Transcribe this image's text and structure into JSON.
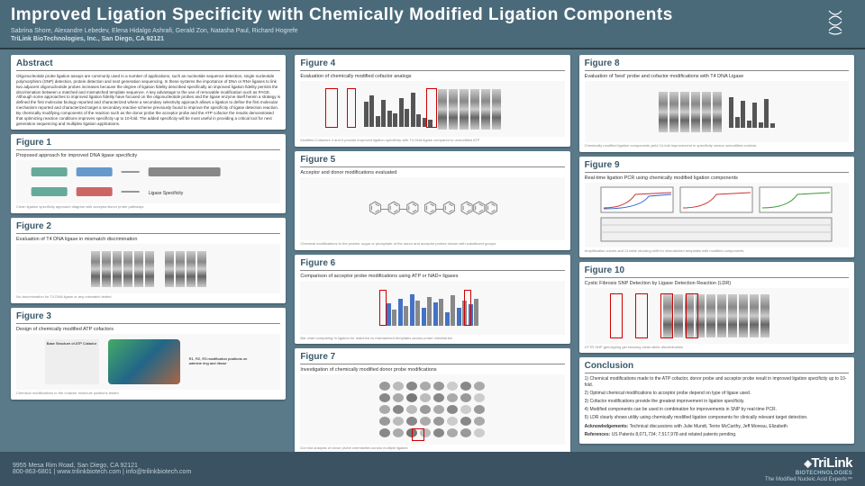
{
  "header": {
    "title": "Improved Ligation Specificity with Chemically Modified Ligation Components",
    "authors": "Sabrina Shore, Alexandre Lebedev, Elena Hidalgo Ashrafi, Gerald Zon, Natasha Paul, Richard Hogrefe",
    "affiliation": "TriLink BioTechnologies, Inc., San Diego, CA 92121"
  },
  "colors": {
    "bg": "#5a7a8a",
    "header_bg": "#4a6a7a",
    "panel_title": "#3a5a6a",
    "footer_bg": "#3a5262",
    "highlight": "#c00"
  },
  "col1": {
    "abstract_title": "Abstract",
    "abstract_body": "Oligonucleotide probe ligation assays are commonly used in a number of applications, such as nucleotide sequence detection, single nucleotide polymorphism (SNP) detection, protein detection and next generation sequencing. In these systems the importance of DNA or RNA ligases to link two adjacent oligonucleotide probes increases because the degree of ligation fidelity described specifically an improved ligation fidelity permits the discrimination between a matched and mismatched template sequence. A key advantage to the use of removable modification such as PAGE. Although some approaches to improved ligation fidelity have focused on the oligonucleotide probes and the ligase enzyme itself herein a strategy is defined the first molecular biology reported and characterized where a secondary selectivity approach allows a ligation to define the first molecular mechanism reported and characterized target a secondary reactive scheme previously found to improve the specificity of ligase detection reaction. By chemically modifying components of the reaction such as the donor probe the acceptor probe and the ATP cofactor the results demonstrated that optimizing reaction conditions improves specificity up to 10-fold. The added specificity will be most useful in providing a critical tool for next generation sequencing and multiplex ligation applications.",
    "fig1_title": "Figure 1",
    "fig1_sub": "Proposed approach for improved DNA ligase specificity",
    "fig2_title": "Figure 2",
    "fig2_sub": "Evaluation of T4 DNA ligase in mismatch discrimination",
    "fig3_title": "Figure 3",
    "fig3_sub": "Design of chemically modified ATP cofactors"
  },
  "col2": {
    "fig4_title": "Figure 4",
    "fig4_sub": "Evaluation of chemically modified cofactor analogs",
    "fig5_title": "Figure 5",
    "fig5_sub": "Acceptor and donor modifications evaluated",
    "fig6_title": "Figure 6",
    "fig6_sub": "Comparison of acceptor probe modifications using ATP or NAD+ ligases",
    "fig7_title": "Figure 7",
    "fig7_sub": "Investigation of chemically modified donor probe modifications"
  },
  "col3": {
    "fig8_title": "Figure 8",
    "fig8_sub": "Evaluation of 'best' probe and cofactor modifications with T4 DNA Ligase",
    "fig9_title": "Figure 9",
    "fig9_sub": "Real-time ligation PCR using chemically modified ligation components",
    "fig10_title": "Figure 10",
    "fig10_sub": "Cystic Fibrosis SNP Detection by Ligase Detection Reaction (LDR)",
    "concl_title": "Conclusion",
    "c1": "1) Chemical modifications made to the ATP cofactor, donor probe and acceptor probe result in improved ligation specificity up to 10-fold.",
    "c2": "2) Optimal chemical modifications to acceptor probe depend on type of ligase used.",
    "c3": "3) Cofactor modifications provide the greatest improvement in ligation specificity.",
    "c4": "4) Modified components can be used in combination for improvements in SNP by real-time PCR.",
    "c5": "5) LDR clearly shows utility using chemically modified ligation components for clinically relevant target detection.",
    "ack_label": "Acknowledgements:",
    "ack": "Technical discussions with Julie Mundt, Terrie McCarthy, Jeff Moreau, Elizabeth",
    "ref_label": "References:",
    "ref": "US Patents 8,071,734; 7,517,978 and related patents pending."
  },
  "fig4_bars": [
    28,
    35,
    12,
    30,
    18,
    15,
    32,
    20,
    38,
    14,
    10,
    8
  ],
  "fig6_bars": [
    25,
    18,
    30,
    22,
    35,
    28,
    20,
    32,
    26,
    30,
    15,
    34,
    20,
    28,
    24,
    30
  ],
  "footer": {
    "addr": "9955 Mesa Rim Road, San Diego, CA 92121",
    "contact": "800-863-6801 | www.trilinkbiotech.com | info@trilinkbiotech.com",
    "brand": "TriLink",
    "brand_sub": "BIOTECHNOLOGIES",
    "tag": "The Modified Nucleic Acid Experts™"
  }
}
